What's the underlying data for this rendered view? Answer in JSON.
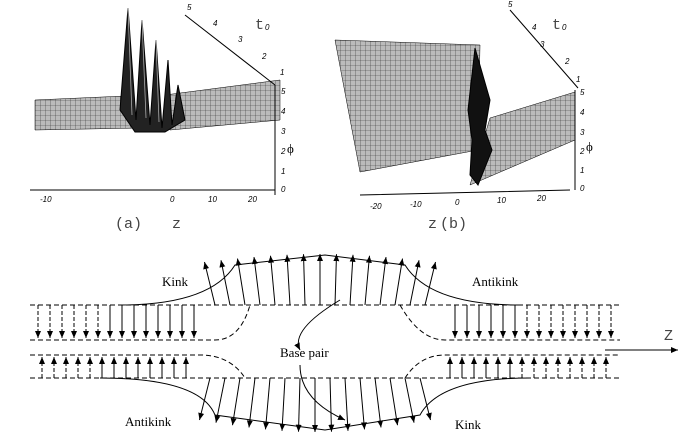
{
  "panels": [
    {
      "label": "(a)",
      "axis_z": "z",
      "axis_t": "t",
      "axis_t_sub": "0",
      "axis_phi": "ϕ",
      "z_ticks": [
        "-10",
        "0",
        "10",
        "20"
      ],
      "t_ticks": [
        "5",
        "4",
        "3",
        "2",
        "1"
      ],
      "phi_ticks": [
        "5",
        "4",
        "3",
        "2",
        "1",
        "0"
      ]
    },
    {
      "label": "(b)",
      "axis_z": "z",
      "axis_t": "t",
      "axis_t_sub": "0",
      "axis_phi": "ϕ",
      "z_ticks": [
        "-20",
        "-10",
        "0",
        "10",
        "20"
      ],
      "t_ticks": [
        "5",
        "4",
        "3",
        "2",
        "1"
      ],
      "phi_ticks": [
        "5",
        "4",
        "3",
        "2",
        "1",
        "0"
      ]
    }
  ],
  "diagram": {
    "top_left": "Kink",
    "top_right": "Antikink",
    "center": "Base pair",
    "bottom_left": "Antikink",
    "bottom_right": "Kink",
    "axis": "Z"
  }
}
